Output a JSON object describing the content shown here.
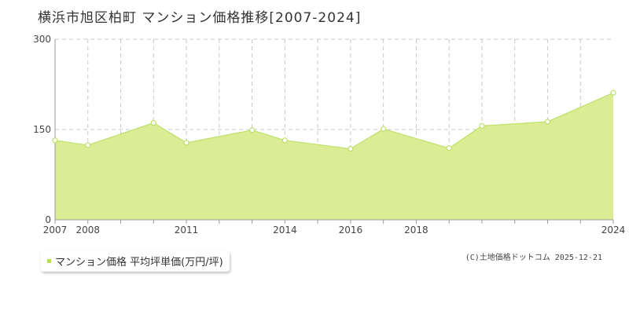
{
  "title": "横浜市旭区柏町 マンション価格推移[2007-2024]",
  "legend": {
    "label": "マンション価格 平均坪単価(万円/坪)",
    "marker_color": "#b7e04f"
  },
  "copyright": "(C)土地価格ドットコム 2025-12-21",
  "colors": {
    "fill": "#dcec94",
    "line": "#bfe06a",
    "grid": "#c8c8c8",
    "axis": "#999999"
  },
  "chart_data": {
    "type": "area",
    "x": [
      2007,
      2008,
      2009,
      2010,
      2011,
      2012,
      2013,
      2014,
      2015,
      2016,
      2017,
      2018,
      2019,
      2020,
      2021,
      2022,
      2023,
      2024
    ],
    "series": [
      {
        "name": "マンション価格 平均坪単価(万円/坪)",
        "points": [
          [
            2007,
            132
          ],
          [
            2008,
            124
          ],
          [
            2010,
            161
          ],
          [
            2011,
            128
          ],
          [
            2013,
            149
          ],
          [
            2014,
            132
          ],
          [
            2016,
            118
          ],
          [
            2017,
            151
          ],
          [
            2019,
            119
          ],
          [
            2020,
            156
          ],
          [
            2022,
            163
          ],
          [
            2024,
            211
          ]
        ]
      }
    ],
    "x_tick_labels": [
      "2007",
      "2008",
      "2011",
      "2014",
      "2016",
      "2018",
      "2024"
    ],
    "y_ticks": [
      0,
      150,
      300
    ],
    "y_tick_labels": [
      "0",
      "150",
      "300"
    ],
    "ylim": [
      0,
      300
    ],
    "xlim": [
      2007,
      2024
    ],
    "grid": true,
    "legend_position": "bottom-left"
  }
}
